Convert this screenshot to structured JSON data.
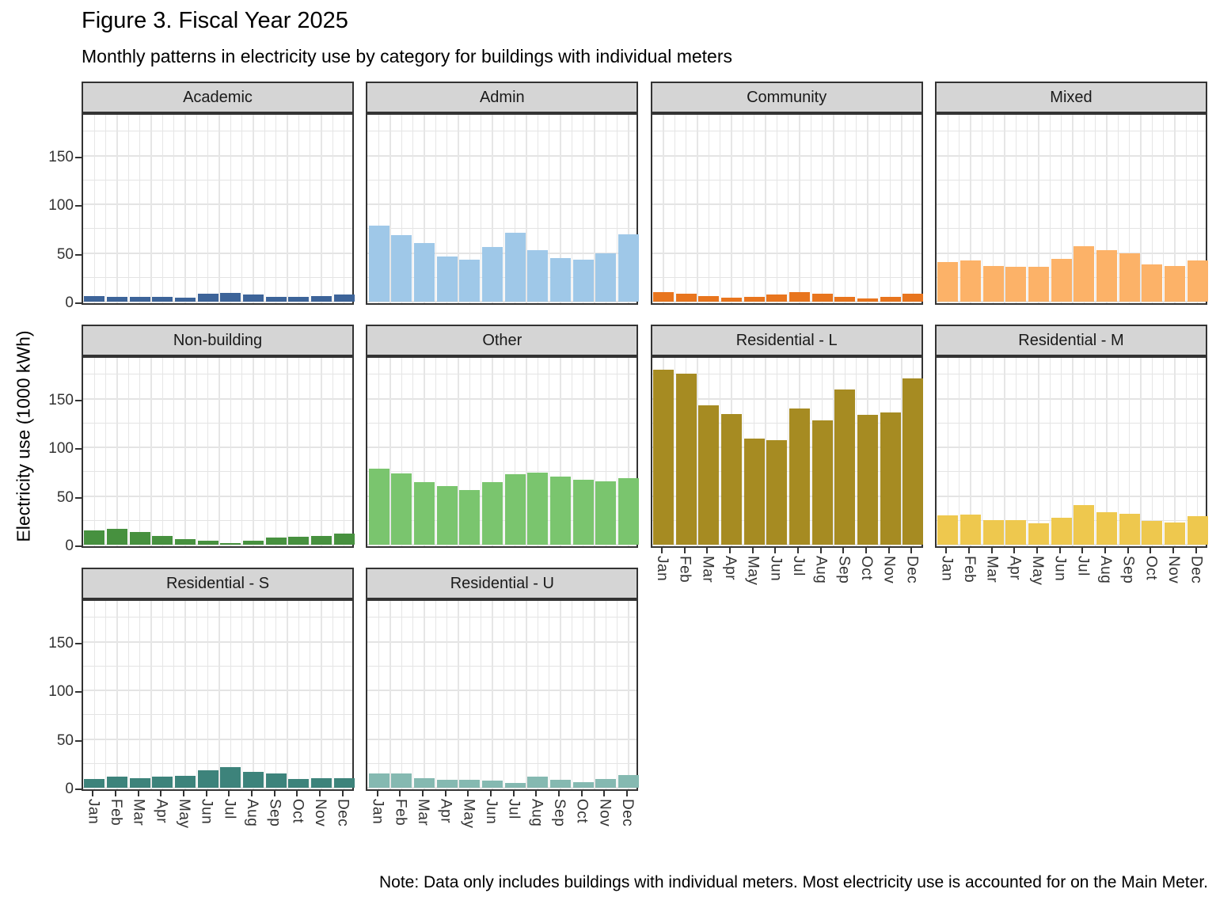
{
  "chart_data": {
    "type": "bar",
    "title": "Figure 3. Fiscal Year 2025",
    "subtitle": "Monthly patterns in electricity use by category for buildings with individual meters",
    "ylabel": "Electricity use (1000 kWh)",
    "note": "Note: Data only includes buildings with individual meters. Most electricity use is accounted for on the Main Meter.",
    "categories": [
      "Jan",
      "Feb",
      "Mar",
      "Apr",
      "May",
      "Jun",
      "Jul",
      "Aug",
      "Sep",
      "Oct",
      "Nov",
      "Dec"
    ],
    "y_ticks": [
      0,
      50,
      100,
      150
    ],
    "ylim": [
      0,
      195
    ],
    "grid": true,
    "legend": "none",
    "layout": {
      "columns": 4,
      "rows": 3
    },
    "facets": [
      {
        "label": "Academic",
        "color": "#3d6499",
        "values": [
          6,
          5,
          5,
          5,
          4,
          8,
          9,
          7,
          5,
          5,
          6,
          7
        ]
      },
      {
        "label": "Admin",
        "color": "#9fc8e8",
        "values": [
          78,
          68,
          60,
          46,
          43,
          56,
          71,
          53,
          45,
          43,
          50,
          69
        ]
      },
      {
        "label": "Community",
        "color": "#e8751e",
        "values": [
          10,
          8,
          6,
          4,
          5,
          7,
          10,
          8,
          5,
          3,
          5,
          8
        ]
      },
      {
        "label": "Mixed",
        "color": "#fcb268",
        "values": [
          41,
          42,
          37,
          36,
          36,
          44,
          57,
          53,
          50,
          38,
          37,
          42
        ]
      },
      {
        "label": "Non-building",
        "color": "#47913f",
        "values": [
          15,
          16,
          13,
          9,
          6,
          4,
          2,
          4,
          7,
          8,
          9,
          11
        ]
      },
      {
        "label": "Other",
        "color": "#7ac56e",
        "values": [
          78,
          73,
          64,
          60,
          56,
          64,
          72,
          74,
          70,
          67,
          65,
          68
        ]
      },
      {
        "label": "Residential - L",
        "color": "#a68b22",
        "values": [
          180,
          176,
          143,
          134,
          109,
          107,
          140,
          128,
          159,
          133,
          136,
          171
        ]
      },
      {
        "label": "Residential - M",
        "color": "#eec84e",
        "values": [
          30,
          31,
          25,
          25,
          22,
          28,
          41,
          33,
          32,
          24,
          23,
          29
        ]
      },
      {
        "label": "Residential - S",
        "color": "#3d837b",
        "values": [
          9,
          11,
          10,
          11,
          12,
          18,
          21,
          16,
          15,
          9,
          10,
          10
        ]
      },
      {
        "label": "Residential - U",
        "color": "#85b9b1",
        "values": [
          15,
          15,
          10,
          8,
          8,
          7,
          5,
          11,
          8,
          6,
          9,
          13
        ]
      }
    ]
  }
}
